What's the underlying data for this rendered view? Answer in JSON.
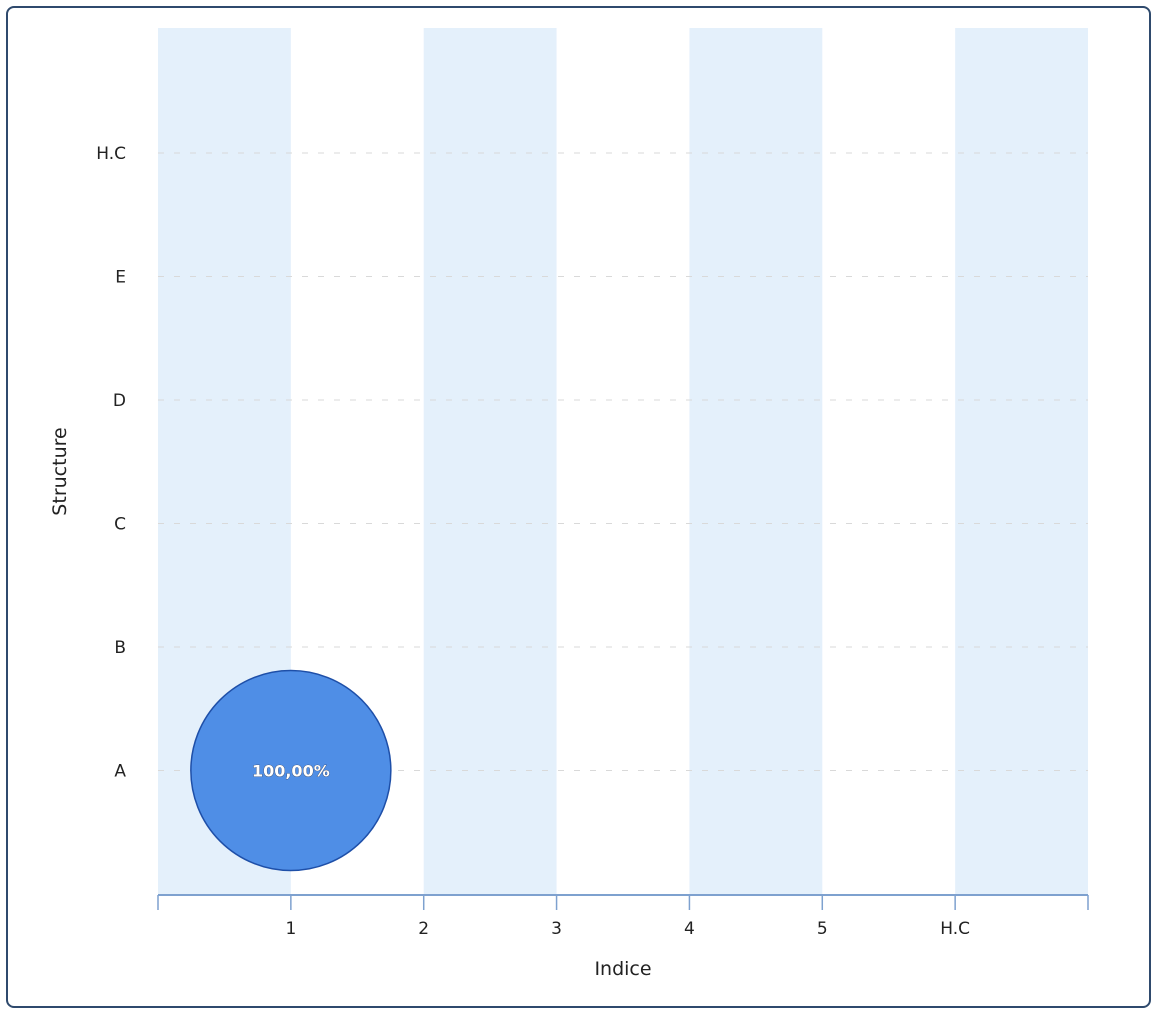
{
  "chart_data": {
    "type": "scatter",
    "x_categories": [
      "1",
      "2",
      "3",
      "4",
      "5",
      "H.C"
    ],
    "y_categories": [
      "A",
      "B",
      "C",
      "D",
      "E",
      "H.C"
    ],
    "xlabel": "Indice",
    "ylabel": "Structure",
    "points": [
      {
        "x": "1",
        "y": "A",
        "value": 100.0,
        "label": "100,00%"
      }
    ],
    "grid": true,
    "colors": {
      "band": "#e4f0fb",
      "bubble": "#4f8ee6",
      "bubble_stroke": "#1e4fa8",
      "axis": "#7ea1cf"
    }
  }
}
